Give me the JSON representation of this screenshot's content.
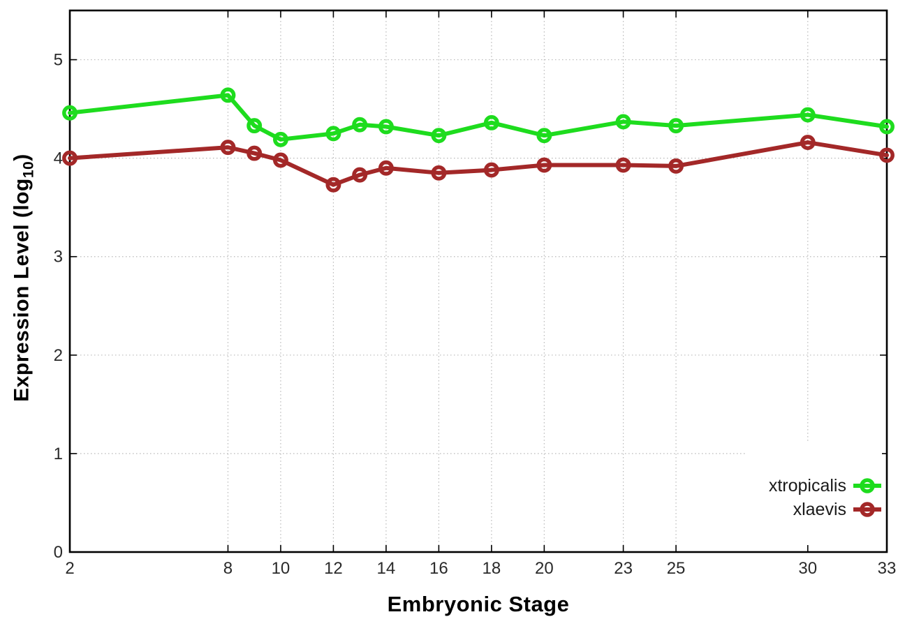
{
  "figure": {
    "background": "#ffffff",
    "frame_color": "#000000",
    "grid_color": "#b8b8b8",
    "tick_label_color": "#2a2a2a"
  },
  "chart_data": {
    "type": "line",
    "title": "",
    "xlabel": "Embryonic Stage",
    "ylabel": "Expression Level (log10)",
    "ylabel_parts": {
      "prefix": "Expression Level (log",
      "subscript": "10",
      "suffix": ")"
    },
    "xlim": [
      2,
      33
    ],
    "ylim": [
      0,
      5.5
    ],
    "x_ticks": [
      2,
      8,
      10,
      12,
      14,
      16,
      18,
      20,
      23,
      25,
      30,
      33
    ],
    "y_ticks": [
      0,
      1,
      2,
      3,
      4,
      5
    ],
    "grid": true,
    "legend_position": "bottom-right",
    "marker": "open-circle",
    "x": [
      2,
      8,
      9,
      10,
      12,
      13,
      14,
      16,
      18,
      20,
      23,
      25,
      30,
      33
    ],
    "series": [
      {
        "name": "xtropicalis",
        "color": "#1edc1e",
        "values": [
          4.46,
          4.64,
          4.33,
          4.19,
          4.25,
          4.34,
          4.32,
          4.23,
          4.36,
          4.23,
          4.37,
          4.33,
          4.44,
          4.32
        ]
      },
      {
        "name": "xlaevis",
        "color": "#a32828",
        "values": [
          4.0,
          4.11,
          4.05,
          3.98,
          3.73,
          3.83,
          3.9,
          3.85,
          3.88,
          3.93,
          3.93,
          3.92,
          4.16,
          4.03
        ]
      }
    ]
  }
}
